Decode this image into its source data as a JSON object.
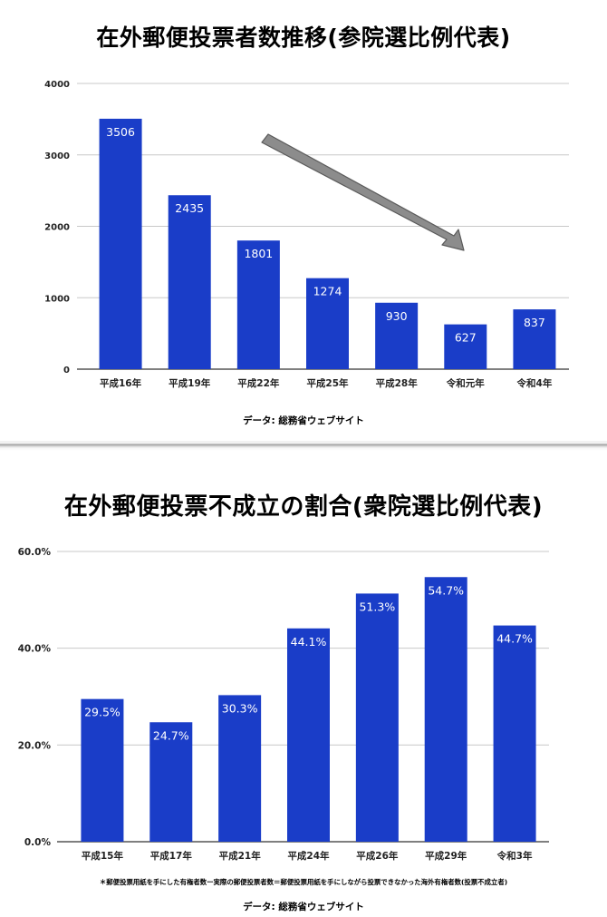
{
  "chart_data": [
    {
      "type": "bar",
      "title": "在外郵便投票者数推移(参院選比例代表)",
      "categories": [
        "平成16年",
        "平成19年",
        "平成22年",
        "平成25年",
        "平成28年",
        "令和元年",
        "令和4年"
      ],
      "values": [
        3506,
        2435,
        1801,
        1274,
        930,
        627,
        837
      ],
      "data_labels": [
        "3506",
        "2435",
        "1801",
        "1274",
        "930",
        "627",
        "837"
      ],
      "ylim": [
        0,
        4000
      ],
      "yticks": [
        0,
        1000,
        2000,
        3000,
        4000
      ],
      "ytick_labels": [
        "0",
        "1000",
        "2000",
        "3000",
        "4000"
      ],
      "xlabel": "",
      "ylabel": "",
      "grid": true,
      "annotations": [
        {
          "type": "arrow",
          "meaning": "decreasing trend"
        }
      ],
      "source": "データ: 総務省ウェブサイト",
      "bar_color": "#1a3dc8",
      "arrow_color": "#8c8c8c"
    },
    {
      "type": "bar",
      "title": "在外郵便投票不成立の割合(衆院選比例代表)",
      "categories": [
        "平成15年",
        "平成17年",
        "平成21年",
        "平成24年",
        "平成26年",
        "平成29年",
        "令和3年"
      ],
      "values": [
        29.5,
        24.7,
        30.3,
        44.1,
        51.3,
        54.7,
        44.7
      ],
      "data_labels": [
        "29.5%",
        "24.7%",
        "30.3%",
        "44.1%",
        "51.3%",
        "54.7%",
        "44.7%"
      ],
      "ylim": [
        0,
        60
      ],
      "yticks": [
        0,
        20,
        40,
        60
      ],
      "ytick_labels": [
        "0.0%",
        "20.0%",
        "40.0%",
        "60.0%"
      ],
      "xlabel": "",
      "ylabel": "",
      "grid": true,
      "note": "＊郵便投票用紙を手にした有権者数ー実際の郵便投票者数＝郵便投票用紙を手にしながら投票できなかった海外有権者数(投票不成立者)",
      "source": "データ: 総務省ウェブサイト",
      "bar_color": "#1a3dc8"
    }
  ]
}
